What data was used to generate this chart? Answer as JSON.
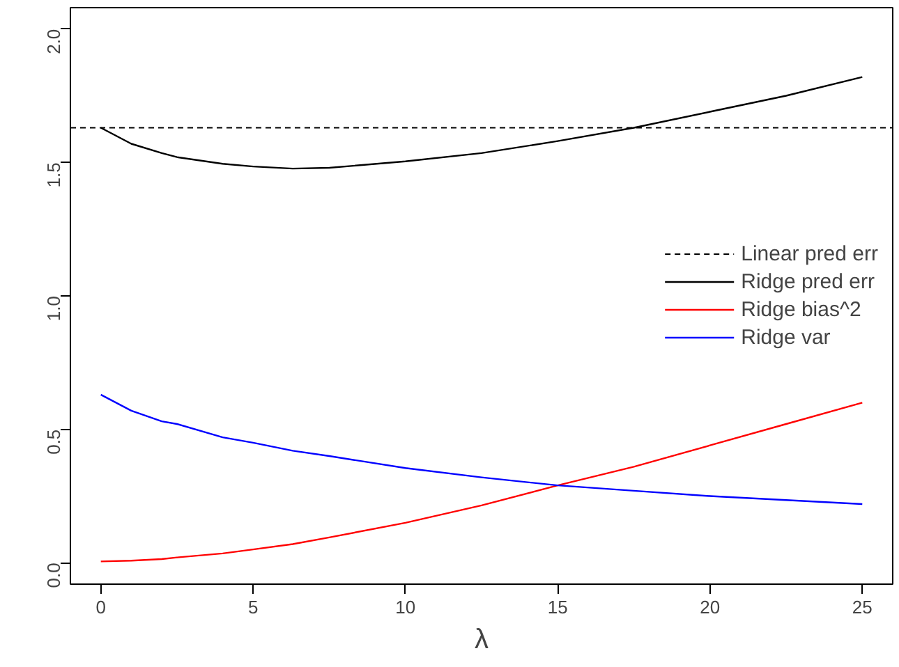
{
  "chart_data": {
    "type": "line",
    "xlabel": "λ",
    "x": [
      0,
      1,
      2,
      2.5,
      4,
      5,
      6.3,
      7.5,
      10,
      12.5,
      15,
      17.5,
      20,
      22.5,
      25
    ],
    "series": [
      {
        "name": "Ridge pred err",
        "color": "#000000",
        "values": [
          1.63,
          1.57,
          1.535,
          1.52,
          1.495,
          1.485,
          1.477,
          1.48,
          1.504,
          1.535,
          1.58,
          1.63,
          1.69,
          1.75,
          1.82
        ]
      },
      {
        "name": "Ridge bias^2",
        "color": "#ff0000",
        "values": [
          0.005,
          0.008,
          0.014,
          0.02,
          0.035,
          0.05,
          0.07,
          0.095,
          0.15,
          0.215,
          0.29,
          0.36,
          0.44,
          0.52,
          0.6
        ]
      },
      {
        "name": "Ridge var",
        "color": "#0000ff",
        "values": [
          0.63,
          0.57,
          0.53,
          0.52,
          0.47,
          0.45,
          0.42,
          0.4,
          0.355,
          0.32,
          0.29,
          0.27,
          0.25,
          0.235,
          0.22
        ]
      }
    ],
    "ref_lines": [
      {
        "axis": "y",
        "value": 1.63,
        "label": "Linear pred err",
        "color": "#000000",
        "line_style": "dashed"
      }
    ],
    "xlim": [
      -1,
      26
    ],
    "ylim": [
      -0.08,
      2.08
    ],
    "xticks": [
      0,
      5,
      10,
      15,
      20,
      25
    ],
    "yticks": [
      {
        "value": 0,
        "label": "0.0"
      },
      {
        "value": 0.5,
        "label": "0.5"
      },
      {
        "value": 1,
        "label": "1.0"
      },
      {
        "value": 1.5,
        "label": "1.5"
      },
      {
        "value": 2,
        "label": "2.0"
      }
    ],
    "legend": "right",
    "grid": false,
    "line_style": "solid",
    "marker": "none"
  }
}
